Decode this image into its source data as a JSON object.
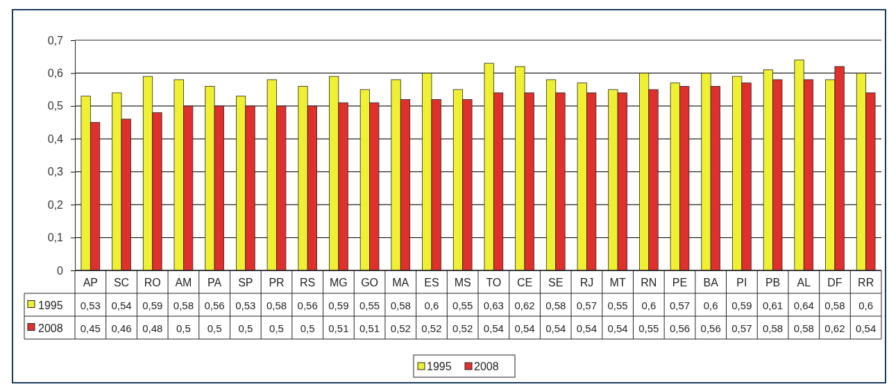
{
  "chart_data": {
    "type": "bar",
    "categories": [
      "AP",
      "SC",
      "RO",
      "AM",
      "PA",
      "SP",
      "PR",
      "RS",
      "MG",
      "GO",
      "MA",
      "ES",
      "MS",
      "TO",
      "CE",
      "SE",
      "RJ",
      "MT",
      "RN",
      "PE",
      "BA",
      "PI",
      "PB",
      "AL",
      "DF",
      "RR"
    ],
    "series": [
      {
        "name": "1995",
        "color": "#f0f032",
        "values": [
          0.53,
          0.54,
          0.59,
          0.58,
          0.56,
          0.53,
          0.58,
          0.56,
          0.59,
          0.55,
          0.58,
          0.6,
          0.55,
          0.63,
          0.62,
          0.58,
          0.57,
          0.55,
          0.6,
          0.57,
          0.6,
          0.59,
          0.61,
          0.64,
          0.58,
          0.6
        ],
        "value_labels": [
          "0,53",
          "0,54",
          "0,59",
          "0,58",
          "0,56",
          "0,53",
          "0,58",
          "0,56",
          "0,59",
          "0,55",
          "0,58",
          "0,6",
          "0,55",
          "0,63",
          "0,62",
          "0,58",
          "0,57",
          "0,55",
          "0,6",
          "0,57",
          "0,6",
          "0,59",
          "0,61",
          "0,64",
          "0,58",
          "0,6"
        ]
      },
      {
        "name": "2008",
        "color": "#e0302e",
        "values": [
          0.45,
          0.46,
          0.48,
          0.5,
          0.5,
          0.5,
          0.5,
          0.5,
          0.51,
          0.51,
          0.52,
          0.52,
          0.52,
          0.54,
          0.54,
          0.54,
          0.54,
          0.54,
          0.55,
          0.56,
          0.56,
          0.57,
          0.58,
          0.58,
          0.62,
          0.54
        ],
        "value_labels": [
          "0,45",
          "0,46",
          "0,48",
          "0,5",
          "0,5",
          "0,5",
          "0,5",
          "0,5",
          "0,51",
          "0,51",
          "0,52",
          "0,52",
          "0,52",
          "0,54",
          "0,54",
          "0,54",
          "0,54",
          "0,54",
          "0,55",
          "0,56",
          "0,56",
          "0,57",
          "0,58",
          "0,58",
          "0,62",
          "0,54"
        ]
      }
    ],
    "ylim": [
      0,
      0.7
    ],
    "yticks": [
      {
        "value": 0,
        "label": "0"
      },
      {
        "value": 0.1,
        "label": "0,1"
      },
      {
        "value": 0.2,
        "label": "0,2"
      },
      {
        "value": 0.3,
        "label": "0,3"
      },
      {
        "value": 0.4,
        "label": "0,4"
      },
      {
        "value": 0.5,
        "label": "0,5"
      },
      {
        "value": 0.6,
        "label": "0,6"
      },
      {
        "value": 0.7,
        "label": "0,7"
      }
    ],
    "grid": "y",
    "legend": "bottom"
  }
}
